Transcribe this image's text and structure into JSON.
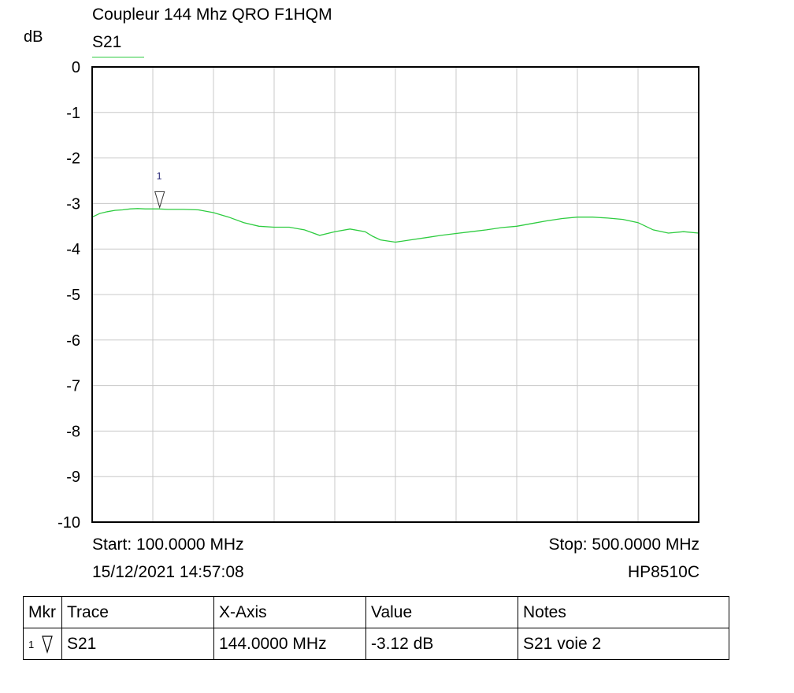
{
  "chart_data": {
    "type": "line",
    "title": "Coupleur 144 Mhz QRO F1HQM",
    "ylabel": "dB",
    "xlabel": "",
    "ylim": [
      -10,
      0
    ],
    "xlim": [
      100,
      500
    ],
    "x_unit": "MHz",
    "yticks": [
      "0",
      "-1",
      "-2",
      "-3",
      "-4",
      "-5",
      "-6",
      "-7",
      "-8",
      "-9",
      "-10"
    ],
    "grid": true,
    "series": [
      {
        "name": "S21",
        "color": "#2ecc40",
        "x": [
          100,
          105,
          110,
          115,
          120,
          125,
          130,
          135,
          140,
          144,
          150,
          160,
          170,
          180,
          190,
          200,
          210,
          220,
          230,
          240,
          250,
          260,
          270,
          280,
          285,
          290,
          300,
          310,
          320,
          330,
          340,
          350,
          360,
          370,
          380,
          390,
          400,
          410,
          420,
          430,
          440,
          450,
          460,
          470,
          480,
          490,
          500
        ],
        "y": [
          -3.3,
          -3.22,
          -3.18,
          -3.15,
          -3.14,
          -3.12,
          -3.11,
          -3.12,
          -3.12,
          -3.12,
          -3.13,
          -3.13,
          -3.14,
          -3.2,
          -3.3,
          -3.42,
          -3.5,
          -3.52,
          -3.52,
          -3.58,
          -3.7,
          -3.62,
          -3.56,
          -3.62,
          -3.72,
          -3.8,
          -3.85,
          -3.8,
          -3.75,
          -3.7,
          -3.66,
          -3.62,
          -3.58,
          -3.53,
          -3.5,
          -3.44,
          -3.38,
          -3.33,
          -3.3,
          -3.3,
          -3.32,
          -3.35,
          -3.42,
          -3.58,
          -3.65,
          -3.62,
          -3.65
        ]
      }
    ],
    "markers": [
      {
        "id": "1",
        "x": 144,
        "y": -3.12
      }
    ],
    "start_label": "Start: 100.0000 MHz",
    "stop_label": "Stop: 500.0000 MHz",
    "datetime": "15/12/2021 14:57:08",
    "instrument": "HP8510C"
  },
  "marker_table": {
    "headers": [
      "Mkr",
      "Trace",
      "X-Axis",
      "Value",
      "Notes"
    ],
    "rows": [
      {
        "mkr": "1",
        "trace": "S21",
        "x_axis": "144.0000 MHz",
        "value": "-3.12 dB",
        "notes": "S21 voie 2"
      }
    ]
  }
}
